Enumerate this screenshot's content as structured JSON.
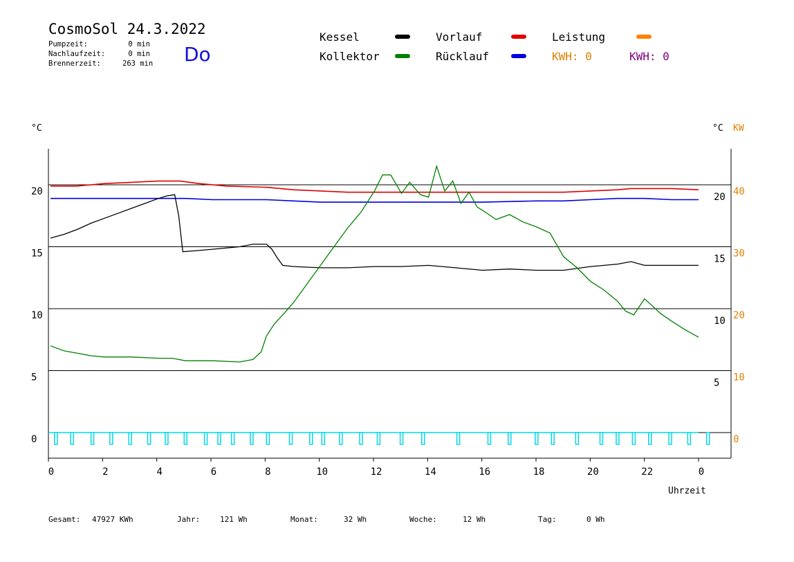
{
  "header": {
    "title": "CosmoSol 24.3.2022",
    "day": "Do",
    "stats": [
      {
        "label": "Pumpzeit:",
        "value": "0 min"
      },
      {
        "label": "Nachlaufzeit:",
        "value": "0 min"
      },
      {
        "label": "Brennerzeit:",
        "value": "263 min"
      }
    ]
  },
  "legend": {
    "items": [
      {
        "label": "Kessel",
        "color": "#000000"
      },
      {
        "label": "Kollektor",
        "color": "#008000"
      },
      {
        "label": "Vorlauf",
        "color": "#e00000"
      },
      {
        "label": "Rücklauf",
        "color": "#0000e0"
      },
      {
        "label": "Leistung",
        "color": "#ff8000"
      }
    ],
    "kwh_orange": "KWH: 0",
    "kwh_purple": "KWH: 0",
    "kwh_orange_color": "#e08000",
    "kwh_purple_color": "#800080"
  },
  "axes": {
    "left_unit": "°C",
    "right_unit_c": "°C",
    "right_unit_kw": "KW",
    "x_label": "Uhrzeit",
    "x_ticks": [
      "0",
      "2",
      "4",
      "6",
      "8",
      "10",
      "12",
      "14",
      "16",
      "18",
      "20",
      "22",
      "0"
    ],
    "left_ticks": [
      "20",
      "15",
      "10",
      "5",
      "0"
    ],
    "right_c_ticks": [
      "20",
      "15",
      "10",
      "5"
    ],
    "right_kw_ticks": [
      "40",
      "30",
      "20",
      "10",
      "0"
    ],
    "kw_color": "#e08000"
  },
  "footer": {
    "gesamt_label": "Gesamt:",
    "gesamt_value": "47927 KWh",
    "jahr_label": "Jahr:",
    "jahr_value": "121 Wh",
    "monat_label": "Monat:",
    "monat_value": "32 Wh",
    "woche_label": "Woche:",
    "woche_value": "12 Wh",
    "tag_label": "Tag:",
    "tag_value": "0 Wh"
  },
  "chart_data": {
    "type": "line",
    "xlabel": "Uhrzeit",
    "ylabel": "°C",
    "xlim": [
      0,
      24
    ],
    "ylim": [
      -1.5,
      23
    ],
    "y2label": "KW",
    "y2lim": [
      -3,
      46
    ],
    "grid": "horizontal",
    "series": [
      {
        "name": "Vorlauf",
        "color": "#e00000",
        "x": [
          0,
          1,
          2,
          3,
          4,
          4.8,
          5.5,
          6.5,
          8,
          9,
          10,
          11,
          12,
          13,
          14,
          15,
          16,
          17,
          18,
          19,
          20,
          21,
          21.5,
          22,
          23,
          24
        ],
        "y": [
          19.9,
          19.9,
          20.1,
          20.2,
          20.3,
          20.3,
          20.1,
          19.9,
          19.8,
          19.6,
          19.5,
          19.4,
          19.4,
          19.4,
          19.4,
          19.4,
          19.4,
          19.4,
          19.4,
          19.4,
          19.5,
          19.6,
          19.7,
          19.7,
          19.7,
          19.6
        ]
      },
      {
        "name": "Rücklauf",
        "color": "#0000e0",
        "x": [
          0,
          1,
          2,
          4,
          5,
          6,
          8,
          9,
          10,
          12,
          14,
          16,
          18,
          19,
          20,
          21,
          22,
          23,
          24
        ],
        "y": [
          18.9,
          18.9,
          18.9,
          18.9,
          18.9,
          18.8,
          18.8,
          18.7,
          18.6,
          18.6,
          18.6,
          18.6,
          18.7,
          18.7,
          18.8,
          18.9,
          18.9,
          18.8,
          18.8
        ]
      },
      {
        "name": "Kessel",
        "color": "#000000",
        "x": [
          0,
          0.5,
          1,
          1.5,
          2,
          2.5,
          3,
          3.5,
          4,
          4.3,
          4.6,
          4.75,
          4.9,
          5.5,
          6,
          7,
          7.5,
          8,
          8.2,
          8.4,
          8.6,
          9,
          10,
          11,
          12,
          13,
          14,
          15,
          16,
          17,
          18,
          19,
          20,
          21,
          21.5,
          22,
          23,
          24
        ],
        "y": [
          15.7,
          16,
          16.4,
          16.9,
          17.3,
          17.7,
          18.1,
          18.5,
          18.9,
          19.1,
          19.2,
          17.5,
          14.6,
          14.7,
          14.8,
          15,
          15.2,
          15.2,
          14.8,
          14.1,
          13.5,
          13.4,
          13.3,
          13.3,
          13.4,
          13.4,
          13.5,
          13.3,
          13.1,
          13.2,
          13.1,
          13.1,
          13.4,
          13.6,
          13.8,
          13.5,
          13.5,
          13.5
        ]
      },
      {
        "name": "Kollektor",
        "color": "#008000",
        "x": [
          0,
          0.5,
          1,
          1.5,
          2,
          3,
          4,
          4.5,
          5,
          6,
          7,
          7.5,
          7.8,
          8,
          8.3,
          8.6,
          9,
          9.5,
          10,
          10.5,
          11,
          11.5,
          12,
          12.3,
          12.6,
          13,
          13.3,
          13.7,
          14,
          14.3,
          14.6,
          14.9,
          15.2,
          15.5,
          15.8,
          16.1,
          16.5,
          17,
          17.5,
          18,
          18.5,
          19,
          19.5,
          20,
          20.5,
          21,
          21.3,
          21.6,
          22,
          22.3,
          22.6,
          23,
          23.5,
          24
        ],
        "y": [
          7,
          6.6,
          6.4,
          6.2,
          6.1,
          6.1,
          6.0,
          6.0,
          5.8,
          5.8,
          5.7,
          5.9,
          6.5,
          7.8,
          8.8,
          9.5,
          10.5,
          12,
          13.5,
          15,
          16.5,
          17.8,
          19.5,
          20.8,
          20.8,
          19.3,
          20.2,
          19.2,
          19.0,
          21.5,
          19.5,
          20.3,
          18.5,
          19.4,
          18.2,
          17.8,
          17.2,
          17.6,
          17.0,
          16.6,
          16.1,
          14.2,
          13.3,
          12.2,
          11.5,
          10.6,
          9.8,
          9.5,
          10.8,
          10.2,
          9.6,
          9.0,
          8.3,
          7.7
        ]
      }
    ],
    "pump_pulses": {
      "name": "Leistung",
      "color": "#00d8e8",
      "x": [
        0.15,
        0.75,
        1.5,
        2.2,
        2.9,
        3.6,
        4.25,
        4.95,
        5.7,
        6.2,
        6.7,
        7.4,
        8,
        8.85,
        9.6,
        10.05,
        10.7,
        11.45,
        12.1,
        12.95,
        13.75,
        15.05,
        16.2,
        16.95,
        17.95,
        18.55,
        19.45,
        20.35,
        20.95,
        21.55,
        22.15,
        22.9,
        23.6,
        24.3
      ]
    }
  }
}
